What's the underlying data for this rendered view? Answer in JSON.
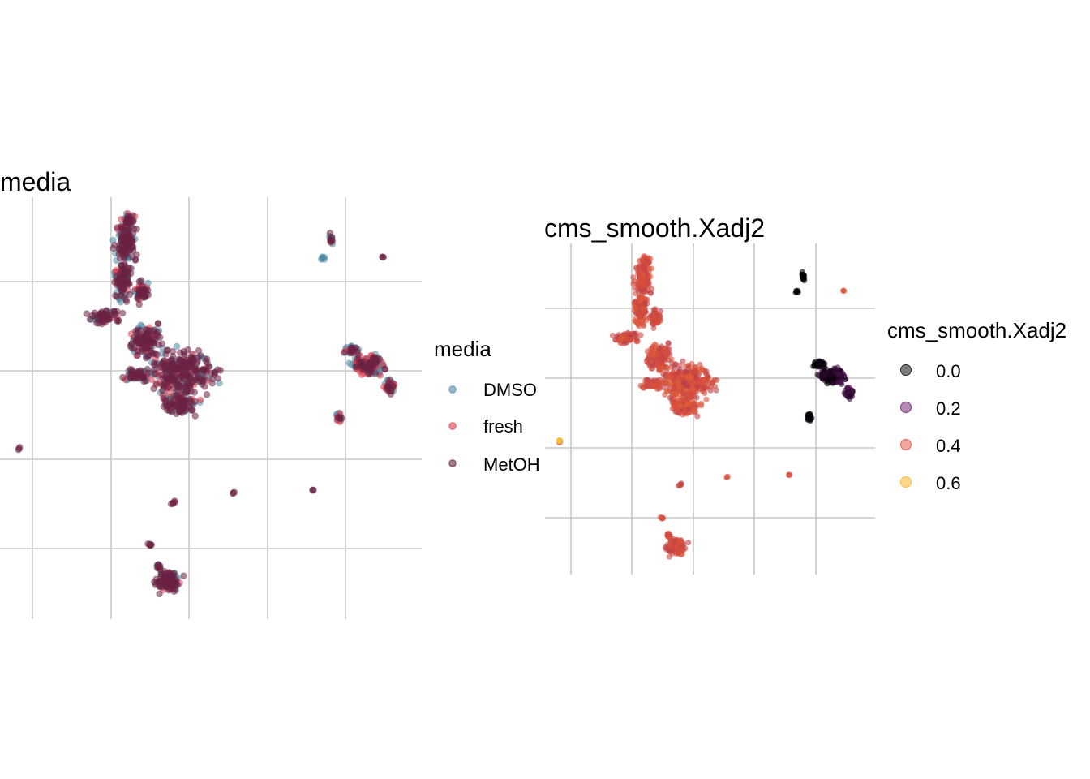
{
  "chart_data": [
    {
      "type": "scatter",
      "title": "media",
      "grid": true,
      "axis_text": false,
      "legend": {
        "title": "media",
        "placement": "right",
        "entries": [
          {
            "label": "DMSO",
            "color": "#4f8aa6"
          },
          {
            "label": "fresh",
            "color": "#e03c4a"
          },
          {
            "label": "MetOH",
            "color": "#6b2244"
          }
        ]
      },
      "clusters": [
        {
          "name": "main",
          "media": [
            "DMSO",
            "fresh",
            "MetOH"
          ]
        },
        {
          "name": "right",
          "media": [
            "DMSO",
            "fresh",
            "MetOH"
          ]
        },
        {
          "name": "bottom",
          "media": [
            "DMSO",
            "MetOH"
          ]
        }
      ]
    },
    {
      "type": "scatter",
      "title": "cms_smooth.Xadj2",
      "grid": true,
      "axis_text": false,
      "legend": {
        "title": "cms_smooth.Xadj2",
        "placement": "right",
        "entries": [
          {
            "label": "0.0",
            "value": 0.0,
            "color": "#000004"
          },
          {
            "label": "0.2",
            "value": 0.2,
            "color": "#6b186e"
          },
          {
            "label": "0.4",
            "value": 0.4,
            "color": "#dd513a"
          },
          {
            "label": "0.6",
            "value": 0.6,
            "color": "#f3b019"
          }
        ]
      },
      "color_scale": {
        "name": "inferno",
        "range": [
          0.0,
          0.7
        ]
      }
    }
  ]
}
